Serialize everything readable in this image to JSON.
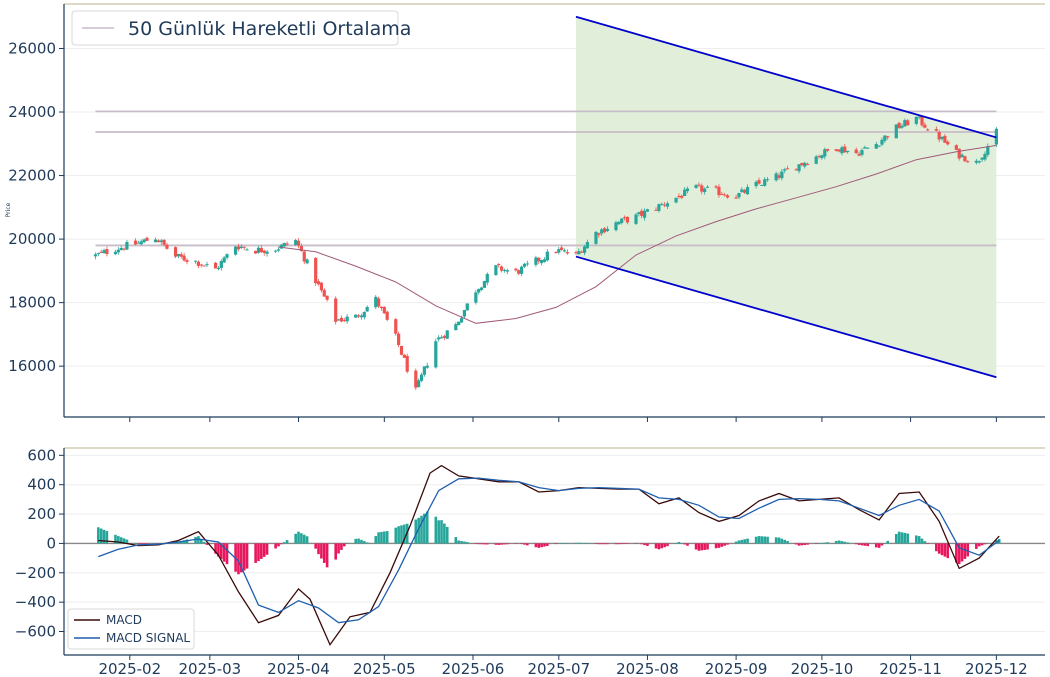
{
  "chart_data": [
    {
      "type": "candlestick",
      "ylabel": "Price",
      "ylim": [
        14400,
        27400
      ],
      "yticks": [
        "16000",
        "18000",
        "20000",
        "22000",
        "24000",
        "26000"
      ],
      "ytick_values": [
        16000,
        18000,
        20000,
        22000,
        24000,
        26000
      ],
      "legend": {
        "label": "50 Günlük Hareketli Ortalama",
        "placement": "top-left"
      },
      "close_anchors": [
        [
          "2025-01-20",
          19480
        ],
        [
          "2025-01-27",
          19700
        ],
        [
          "2025-02-03",
          19850
        ],
        [
          "2025-02-10",
          20050
        ],
        [
          "2025-02-17",
          19450
        ],
        [
          "2025-02-24",
          19300
        ],
        [
          "2025-03-03",
          19050
        ],
        [
          "2025-03-10",
          19800
        ],
        [
          "2025-03-17",
          19650
        ],
        [
          "2025-03-24",
          19700
        ],
        [
          "2025-03-31",
          19950
        ],
        [
          "2025-04-07",
          18700
        ],
        [
          "2025-04-14",
          17450
        ],
        [
          "2025-04-21",
          17550
        ],
        [
          "2025-04-28",
          18100
        ],
        [
          "2025-05-05",
          16900
        ],
        [
          "2025-05-12",
          15200
        ],
        [
          "2025-05-19",
          16800
        ],
        [
          "2025-05-26",
          17300
        ],
        [
          "2025-06-02",
          18400
        ],
        [
          "2025-06-09",
          19100
        ],
        [
          "2025-06-16",
          18950
        ],
        [
          "2025-06-23",
          19300
        ],
        [
          "2025-06-30",
          19650
        ],
        [
          "2025-07-07",
          19500
        ],
        [
          "2025-07-14",
          20200
        ],
        [
          "2025-07-21",
          20500
        ],
        [
          "2025-07-28",
          20700
        ],
        [
          "2025-08-04",
          21000
        ],
        [
          "2025-08-11",
          21300
        ],
        [
          "2025-08-18",
          21600
        ],
        [
          "2025-08-25",
          21500
        ],
        [
          "2025-09-01",
          21350
        ],
        [
          "2025-09-08",
          21700
        ],
        [
          "2025-09-15",
          21950
        ],
        [
          "2025-09-22",
          22300
        ],
        [
          "2025-09-29",
          22600
        ],
        [
          "2025-10-06",
          22900
        ],
        [
          "2025-10-13",
          22700
        ],
        [
          "2025-10-20",
          23000
        ],
        [
          "2025-10-27",
          23500
        ],
        [
          "2025-11-03",
          23800
        ],
        [
          "2025-11-10",
          23300
        ],
        [
          "2025-11-17",
          22700
        ],
        [
          "2025-11-24",
          22400
        ],
        [
          "2025-12-01",
          23350
        ]
      ],
      "moving_average": [
        [
          "2025-03-25",
          19750
        ],
        [
          "2025-04-07",
          19600
        ],
        [
          "2025-04-21",
          19150
        ],
        [
          "2025-05-05",
          18650
        ],
        [
          "2025-05-19",
          17900
        ],
        [
          "2025-06-02",
          17350
        ],
        [
          "2025-06-16",
          17500
        ],
        [
          "2025-06-30",
          17850
        ],
        [
          "2025-07-14",
          18500
        ],
        [
          "2025-07-28",
          19500
        ],
        [
          "2025-08-11",
          20100
        ],
        [
          "2025-08-25",
          20550
        ],
        [
          "2025-09-08",
          20950
        ],
        [
          "2025-09-22",
          21300
        ],
        [
          "2025-10-06",
          21650
        ],
        [
          "2025-10-20",
          22050
        ],
        [
          "2025-11-03",
          22500
        ],
        [
          "2025-11-17",
          22750
        ],
        [
          "2025-12-01",
          22950
        ]
      ],
      "horizontal_levels": [
        {
          "y": 24020,
          "x_start": "2025-01-20",
          "x_end": "2025-12-01"
        },
        {
          "y": 23370,
          "x_start": "2025-01-20",
          "x_end": "2025-12-01"
        },
        {
          "y": 19800,
          "x_start": "2025-01-20",
          "x_end": "2025-12-01"
        }
      ],
      "channel": {
        "upper": [
          [
            "2025-07-07",
            27000
          ],
          [
            "2025-12-01",
            23200
          ]
        ],
        "lower": [
          [
            "2025-07-07",
            19450
          ],
          [
            "2025-12-01",
            15650
          ]
        ],
        "fill": "#e1efda",
        "line_color": "#0000cc"
      }
    },
    {
      "type": "macd",
      "ylim": [
        -760,
        650
      ],
      "yticks": [
        "−600",
        "−400",
        "−200",
        "0",
        "200",
        "400",
        "600"
      ],
      "ytick_values": [
        -600,
        -400,
        -200,
        0,
        200,
        400,
        600
      ],
      "legend": {
        "labels": [
          "MACD",
          "MACD SIGNAL"
        ],
        "placement": "bottom-left"
      },
      "series": [
        {
          "name": "MACD",
          "color": "#3a0a0a",
          "points": [
            [
              "2025-01-21",
              20
            ],
            [
              "2025-01-28",
              10
            ],
            [
              "2025-02-04",
              -15
            ],
            [
              "2025-02-11",
              -10
            ],
            [
              "2025-02-18",
              20
            ],
            [
              "2025-02-25",
              80
            ],
            [
              "2025-03-04",
              -80
            ],
            [
              "2025-03-11",
              -330
            ],
            [
              "2025-03-18",
              -540
            ],
            [
              "2025-03-25",
              -490
            ],
            [
              "2025-04-01",
              -310
            ],
            [
              "2025-04-05",
              -380
            ],
            [
              "2025-04-12",
              -690
            ],
            [
              "2025-04-19",
              -500
            ],
            [
              "2025-04-26",
              -470
            ],
            [
              "2025-05-03",
              -200
            ],
            [
              "2025-05-10",
              120
            ],
            [
              "2025-05-17",
              480
            ],
            [
              "2025-05-21",
              530
            ],
            [
              "2025-05-27",
              460
            ],
            [
              "2025-06-03",
              440
            ],
            [
              "2025-06-10",
              420
            ],
            [
              "2025-06-17",
              420
            ],
            [
              "2025-06-24",
              350
            ],
            [
              "2025-07-01",
              360
            ],
            [
              "2025-07-08",
              380
            ],
            [
              "2025-07-15",
              375
            ],
            [
              "2025-07-22",
              370
            ],
            [
              "2025-07-29",
              370
            ],
            [
              "2025-08-05",
              270
            ],
            [
              "2025-08-12",
              310
            ],
            [
              "2025-08-19",
              210
            ],
            [
              "2025-08-26",
              150
            ],
            [
              "2025-09-02",
              190
            ],
            [
              "2025-09-09",
              290
            ],
            [
              "2025-09-16",
              340
            ],
            [
              "2025-09-23",
              290
            ],
            [
              "2025-09-30",
              300
            ],
            [
              "2025-10-07",
              310
            ],
            [
              "2025-10-14",
              230
            ],
            [
              "2025-10-21",
              160
            ],
            [
              "2025-10-28",
              340
            ],
            [
              "2025-11-04",
              350
            ],
            [
              "2025-11-11",
              150
            ],
            [
              "2025-11-18",
              -170
            ],
            [
              "2025-11-25",
              -100
            ],
            [
              "2025-12-02",
              50
            ]
          ]
        },
        {
          "name": "MACD SIGNAL",
          "color": "#1f5fae",
          "points": [
            [
              "2025-01-21",
              -90
            ],
            [
              "2025-01-28",
              -40
            ],
            [
              "2025-02-04",
              -10
            ],
            [
              "2025-02-11",
              -5
            ],
            [
              "2025-02-18",
              10
            ],
            [
              "2025-02-25",
              30
            ],
            [
              "2025-03-04",
              10
            ],
            [
              "2025-03-11",
              -120
            ],
            [
              "2025-03-18",
              -420
            ],
            [
              "2025-03-25",
              -470
            ],
            [
              "2025-04-01",
              -390
            ],
            [
              "2025-04-08",
              -440
            ],
            [
              "2025-04-15",
              -540
            ],
            [
              "2025-04-22",
              -520
            ],
            [
              "2025-04-29",
              -430
            ],
            [
              "2025-05-06",
              -180
            ],
            [
              "2025-05-13",
              100
            ],
            [
              "2025-05-20",
              360
            ],
            [
              "2025-05-27",
              440
            ],
            [
              "2025-06-03",
              445
            ],
            [
              "2025-06-10",
              430
            ],
            [
              "2025-06-17",
              420
            ],
            [
              "2025-06-24",
              380
            ],
            [
              "2025-07-01",
              360
            ],
            [
              "2025-07-08",
              375
            ],
            [
              "2025-07-15",
              380
            ],
            [
              "2025-07-22",
              375
            ],
            [
              "2025-07-29",
              370
            ],
            [
              "2025-08-05",
              310
            ],
            [
              "2025-08-12",
              300
            ],
            [
              "2025-08-19",
              260
            ],
            [
              "2025-08-26",
              180
            ],
            [
              "2025-09-02",
              170
            ],
            [
              "2025-09-09",
              240
            ],
            [
              "2025-09-16",
              300
            ],
            [
              "2025-09-23",
              305
            ],
            [
              "2025-09-30",
              300
            ],
            [
              "2025-10-07",
              290
            ],
            [
              "2025-10-14",
              240
            ],
            [
              "2025-10-21",
              190
            ],
            [
              "2025-10-28",
              260
            ],
            [
              "2025-11-04",
              300
            ],
            [
              "2025-11-11",
              220
            ],
            [
              "2025-11-18",
              -30
            ],
            [
              "2025-11-25",
              -80
            ],
            [
              "2025-12-02",
              20
            ]
          ]
        }
      ],
      "histogram_colors": {
        "positive": "#26a69a",
        "negative": "#e8175d"
      }
    }
  ],
  "x_axis": {
    "ticks": [
      "2025-02",
      "2025-03",
      "2025-04",
      "2025-05",
      "2025-06",
      "2025-07",
      "2025-08",
      "2025-09",
      "2025-10",
      "2025-11",
      "2025-12"
    ],
    "tick_dates": [
      "2025-02-01",
      "2025-03-01",
      "2025-04-01",
      "2025-05-01",
      "2025-06-01",
      "2025-07-01",
      "2025-08-01",
      "2025-09-01",
      "2025-10-01",
      "2025-11-01",
      "2025-12-01"
    ],
    "range": [
      "2025-01-09",
      "2025-12-18"
    ]
  },
  "colors": {
    "up": "#26a69a",
    "down": "#ef5350",
    "ma": "#a05a7a",
    "levels": "#c8bcc8",
    "axes": "#1f3a5a",
    "grid": "#eeeeee"
  }
}
